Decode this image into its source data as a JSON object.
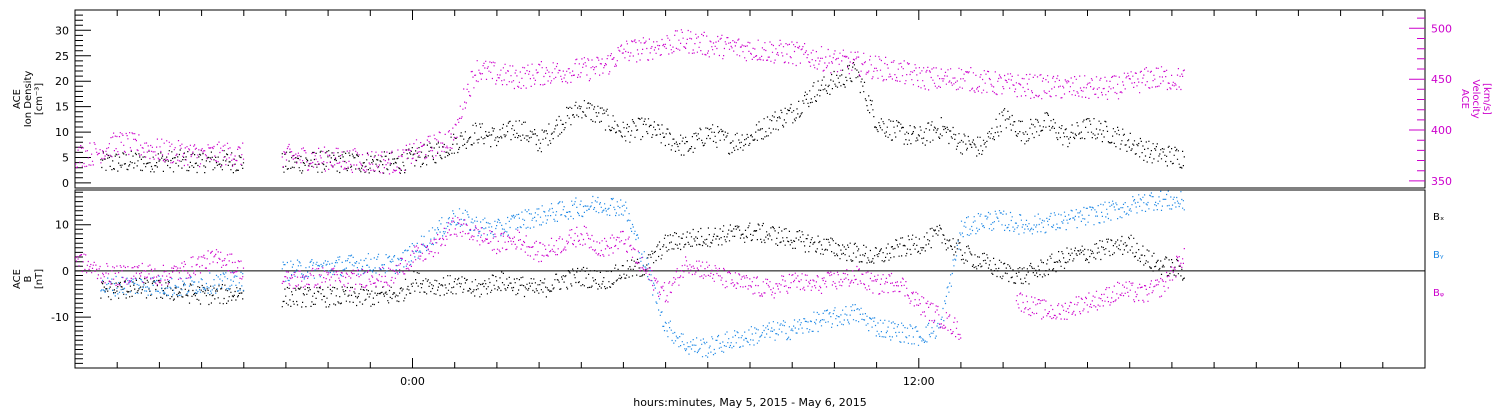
{
  "colors": {
    "density": "#000000",
    "velocity": "#cc00cc",
    "bx": "#000000",
    "by": "#1e88e5",
    "bz": "#cc00cc"
  },
  "xaxis": {
    "title": "hours:minutes,  May  5, 2015 - May  6, 2015",
    "tick_labels": [
      "0:00",
      "12:00"
    ]
  },
  "chart_data": [
    {
      "type": "scatter",
      "panel": "top",
      "left_axis": {
        "label_lines": [
          "ACE",
          "Ion Density",
          "[cm⁻³]"
        ],
        "ylim": [
          -1,
          34
        ],
        "ticks": [
          0,
          5,
          10,
          15,
          20,
          25,
          30
        ]
      },
      "right_axis": {
        "label_lines": [
          "ACE",
          "Velocity",
          "[km/s]"
        ],
        "ylim": [
          343,
          518
        ],
        "ticks": [
          350,
          400,
          450,
          500
        ]
      },
      "xlim_hours": [
        -8,
        24
      ],
      "series": [
        {
          "key": "density",
          "axis": "left",
          "segments": [
            {
              "x": [
                -7.4,
                -6,
                -5,
                -4.5,
                -4
              ],
              "y": [
                4,
                4.5,
                4.3,
                4.4,
                4.2
              ]
            },
            {
              "x": [
                -3.1,
                -2,
                -1,
                -0.3,
                0,
                0.5,
                1,
                1.5,
                2,
                2.5,
                3,
                3.5,
                4,
                4.5,
                5,
                5.5,
                6,
                6.5,
                7,
                7.5,
                8,
                8.5,
                9,
                9.5,
                10,
                10.5,
                11,
                11.5,
                12,
                12.5,
                13,
                13.5,
                14,
                14.5,
                15,
                15.5,
                16,
                16.5,
                17,
                17.5,
                18.3
              ],
              "y": [
                4,
                4.3,
                4.1,
                4,
                5,
                6,
                8,
                10,
                9,
                11,
                8,
                12,
                15,
                13,
                10,
                11,
                9,
                7,
                10,
                8,
                9,
                12,
                14,
                18,
                20,
                22,
                12,
                10,
                9,
                11,
                8,
                7,
                13,
                10,
                12,
                9,
                11,
                10,
                8,
                6,
                5
              ]
            }
          ]
        },
        {
          "key": "velocity",
          "axis": "right",
          "segments": [
            {
              "x": [
                -8,
                -7.5,
                -7,
                -6.5,
                -6,
                -5.5,
                -5,
                -4.5,
                -4
              ],
              "y": [
                375,
                378,
                388,
                385,
                380,
                378,
                376,
                377,
                376
              ]
            },
            {
              "x": [
                -3.1,
                -2.5,
                -2,
                -1.5,
                -1,
                -0.5,
                -0.3,
                0,
                0.5,
                1,
                1.2,
                1.5,
                2,
                2.5,
                3,
                3.5,
                4,
                4.5,
                5,
                5.5,
                6,
                6.5,
                7,
                7.5,
                8,
                8.5,
                9,
                9.5,
                10,
                10.5,
                11,
                11.5,
                12,
                12.5,
                13,
                13.5,
                14,
                14.5,
                15,
                15.5,
                16,
                16.5,
                17,
                17.5,
                18.3
              ],
              "y": [
                375,
                373,
                372,
                371,
                370,
                369,
                370,
                378,
                385,
                395,
                430,
                460,
                455,
                452,
                456,
                458,
                460,
                462,
                478,
                480,
                485,
                488,
                484,
                482,
                480,
                478,
                476,
                472,
                468,
                466,
                462,
                458,
                453,
                450,
                452,
                448,
                445,
                444,
                443,
                442,
                442,
                441,
                446,
                452,
                450
              ]
            }
          ]
        }
      ]
    },
    {
      "type": "scatter",
      "panel": "bottom",
      "left_axis": {
        "label_lines": [
          "ACE",
          "B",
          "[nT]"
        ],
        "ylim": [
          -21,
          17.5
        ],
        "ticks": [
          -10,
          0,
          10
        ]
      },
      "xlim_hours": [
        -8,
        24
      ],
      "series": [
        {
          "key": "bx",
          "name": "Bₓ",
          "segments": [
            {
              "x": [
                -7.4,
                -7,
                -6.5,
                -6,
                -5.5,
                -5,
                -4.5,
                -4
              ],
              "y": [
                -4,
                -4,
                -3.5,
                -4,
                -4.5,
                -5,
                -5,
                -4.5
              ]
            },
            {
              "x": [
                -3.1,
                -2,
                -1,
                -0.3,
                0,
                0.5,
                1,
                1.5,
                2,
                2.5,
                3,
                3.5,
                4,
                4.5,
                5,
                5.5,
                6,
                6.5,
                7,
                7.5,
                8,
                8.5,
                9,
                9.5,
                10,
                10.5,
                11,
                11.5,
                12,
                12.5,
                13,
                13.5,
                14,
                14.5,
                15,
                15.5,
                16,
                16.5,
                17,
                17.5,
                18.3
              ],
              "y": [
                -5.5,
                -5.5,
                -5.5,
                -5,
                -2,
                -3,
                -3,
                -4,
                -2,
                -3,
                -4,
                -2,
                -1,
                -2,
                0,
                1,
                6,
                7,
                7.5,
                8,
                8.5,
                8,
                7,
                6,
                5,
                4,
                3,
                5,
                6,
                8,
                4,
                2,
                0,
                -1,
                1,
                3,
                4,
                5,
                6,
                2,
                0
              ]
            }
          ]
        },
        {
          "key": "by",
          "name": "Bᵧ",
          "segments": [
            {
              "x": [
                -7.4,
                -7,
                -6.5,
                -6,
                -5.5,
                -5,
                -4.5,
                -4
              ],
              "y": [
                -3.5,
                -3,
                -3,
                -3,
                -3.5,
                -2.5,
                -2.5,
                -2
              ]
            },
            {
              "x": [
                -3.1,
                -2.5,
                -2,
                -1.5,
                -1,
                -0.5,
                -0.3,
                0,
                0.5,
                1,
                1.5,
                2,
                2.5,
                3,
                3.5,
                4,
                4.5,
                5,
                5.5,
                6,
                6.5,
                7,
                7.5,
                8,
                8.5,
                9,
                9.5,
                10,
                10.5,
                11,
                11.5,
                12,
                12.5,
                13,
                13.5,
                14,
                14.5,
                15,
                15.5,
                16,
                16.5,
                17,
                17.5,
                18.3
              ],
              "y": [
                0,
                0.5,
                1,
                1.5,
                1.8,
                1.5,
                2,
                4,
                8,
                12,
                10,
                9,
                11,
                12,
                13,
                14,
                14.5,
                14,
                2,
                -12,
                -16,
                -16.5,
                -15,
                -14,
                -13,
                -12.5,
                -11,
                -10,
                -9,
                -12,
                -13,
                -14,
                -12,
                9,
                11,
                11,
                10,
                10.5,
                11,
                12,
                13,
                14,
                15.5,
                15
              ]
            }
          ]
        },
        {
          "key": "bz",
          "name": "Bᵩ",
          "segments": [
            {
              "x": [
                -8,
                -7.5,
                -7,
                -6.5,
                -6,
                -5.5,
                -5,
                -4.5,
                -4
              ],
              "y": [
                3,
                0,
                -1,
                0,
                -1,
                0,
                2,
                3,
                0
              ]
            },
            {
              "x": [
                -3.1,
                -2.5,
                -2,
                -1.5,
                -1,
                -0.5,
                -0.3,
                0,
                0.5,
                1,
                1.5,
                2,
                2.5,
                3,
                3.5,
                4,
                4.5,
                5,
                5.5,
                6,
                6.5,
                7,
                7.5,
                8,
                8.5,
                9,
                9.5,
                10,
                10.5,
                11,
                11.5,
                12,
                12.5,
                13
              ],
              "y": [
                -2,
                -1.5,
                -1,
                -2,
                -1,
                -1.5,
                1,
                3,
                5,
                10,
                8,
                6,
                7,
                4,
                6,
                8,
                5,
                7,
                0,
                -5,
                2,
                0,
                -2,
                -3,
                -4,
                -2,
                -3,
                -2,
                -1,
                -3,
                -2,
                -7,
                -10,
                -13
              ]
            },
            {
              "x": [
                14.3,
                14.8,
                15.3,
                15.8,
                16.3,
                16.8,
                17.3,
                17.8,
                18.3
              ],
              "y": [
                -6,
                -8,
                -9,
                -7,
                -6,
                -4,
                -5,
                -3,
                4
              ]
            }
          ]
        }
      ]
    }
  ]
}
